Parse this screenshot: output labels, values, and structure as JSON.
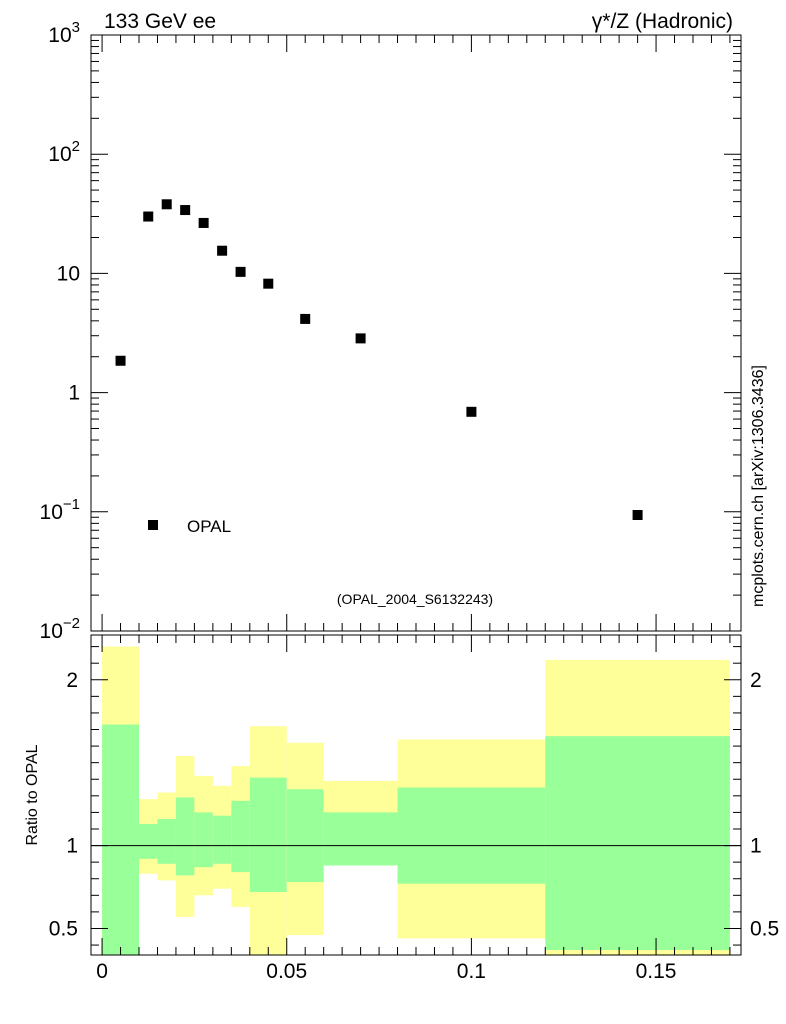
{
  "header": {
    "left": "133 GeV ee",
    "right": "γ*/Z (Hadronic)"
  },
  "side_label": "mcplots.cern.ch [arXiv:1306.3436]",
  "analysis_label": "(OPAL_2004_S6132243)",
  "colors": {
    "band_outer": "#ffff99",
    "band_inner": "#99ff99",
    "marker": "#000000",
    "analysis_label": "#999999"
  },
  "chart_data": [
    {
      "type": "scatter",
      "yscale": "log",
      "xlim": [
        -0.003,
        0.173
      ],
      "ylim": [
        0.01,
        1000
      ],
      "y_ticks": [
        {
          "v": 0.01,
          "base": "10",
          "exp": "−2"
        },
        {
          "v": 0.1,
          "base": "10",
          "exp": "−1"
        },
        {
          "v": 1,
          "base": "1",
          "exp": ""
        },
        {
          "v": 10,
          "base": "10",
          "exp": ""
        },
        {
          "v": 100,
          "base": "10",
          "exp": "2"
        },
        {
          "v": 1000,
          "base": "10",
          "exp": "3"
        }
      ],
      "legend": [
        {
          "name": "OPAL",
          "marker": "square"
        }
      ],
      "series": [
        {
          "name": "OPAL",
          "x": [
            0.005,
            0.0125,
            0.0175,
            0.0225,
            0.0275,
            0.0325,
            0.0375,
            0.045,
            0.055,
            0.07,
            0.1,
            0.145
          ],
          "y": [
            1.85,
            30.0,
            38.0,
            34.0,
            26.5,
            15.5,
            10.3,
            8.2,
            4.15,
            2.85,
            0.69,
            0.094
          ]
        }
      ]
    },
    {
      "type": "area",
      "ylabel": "Ratio to OPAL",
      "xlim": [
        -0.003,
        0.173
      ],
      "ylim": [
        0.34,
        2.27
      ],
      "x_ticks": [
        {
          "v": 0,
          "label": "0"
        },
        {
          "v": 0.05,
          "label": "0.05"
        },
        {
          "v": 0.1,
          "label": "0.1"
        },
        {
          "v": 0.15,
          "label": "0.15"
        }
      ],
      "y_ticks": [
        {
          "v": 0.5,
          "label": "0.5"
        },
        {
          "v": 1,
          "label": "1"
        },
        {
          "v": 2,
          "label": "2"
        }
      ],
      "reference_line": 1,
      "bins": [
        {
          "lo": 0.0,
          "hi": 0.01,
          "outer": [
            0.3,
            2.2
          ],
          "inner": [
            0.3,
            1.73
          ]
        },
        {
          "lo": 0.01,
          "hi": 0.015,
          "outer": [
            0.83,
            1.28
          ],
          "inner": [
            0.92,
            1.13
          ]
        },
        {
          "lo": 0.015,
          "hi": 0.02,
          "outer": [
            0.79,
            1.32
          ],
          "inner": [
            0.89,
            1.16
          ]
        },
        {
          "lo": 0.02,
          "hi": 0.025,
          "outer": [
            0.57,
            1.54
          ],
          "inner": [
            0.82,
            1.29
          ]
        },
        {
          "lo": 0.025,
          "hi": 0.03,
          "outer": [
            0.7,
            1.42
          ],
          "inner": [
            0.87,
            1.2
          ]
        },
        {
          "lo": 0.03,
          "hi": 0.035,
          "outer": [
            0.74,
            1.36
          ],
          "inner": [
            0.89,
            1.18
          ]
        },
        {
          "lo": 0.035,
          "hi": 0.04,
          "outer": [
            0.63,
            1.48
          ],
          "inner": [
            0.84,
            1.27
          ]
        },
        {
          "lo": 0.04,
          "hi": 0.05,
          "outer": [
            0.34,
            1.72
          ],
          "inner": [
            0.72,
            1.41
          ]
        },
        {
          "lo": 0.05,
          "hi": 0.06,
          "outer": [
            0.46,
            1.62
          ],
          "inner": [
            0.78,
            1.34
          ]
        },
        {
          "lo": 0.06,
          "hi": 0.08,
          "outer": [
            0.88,
            1.39
          ],
          "inner": [
            0.88,
            1.2
          ]
        },
        {
          "lo": 0.08,
          "hi": 0.12,
          "outer": [
            0.44,
            1.64
          ],
          "inner": [
            0.77,
            1.35
          ]
        },
        {
          "lo": 0.12,
          "hi": 0.17,
          "outer": [
            0.34,
            2.12
          ],
          "inner": [
            0.37,
            1.66
          ]
        }
      ]
    }
  ]
}
